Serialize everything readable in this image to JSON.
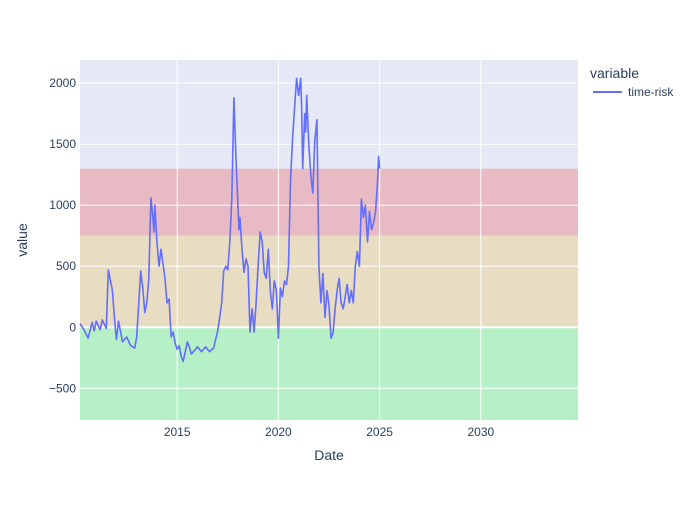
{
  "chart_data": {
    "type": "line",
    "xlabel": "Date",
    "ylabel": "value",
    "xlim": [
      2010.2,
      2034.8
    ],
    "ylim": [
      -760,
      2190
    ],
    "x_ticks": [
      2015,
      2020,
      2025,
      2030
    ],
    "x_tick_labels": [
      "2015",
      "2020",
      "2025",
      "2030"
    ],
    "y_ticks": [
      -500,
      0,
      500,
      1000,
      1500,
      2000
    ],
    "y_tick_labels": [
      "−500",
      "0",
      "500",
      "1000",
      "1500",
      "2000"
    ],
    "grid": true,
    "legend": {
      "title": "variable",
      "placement": "top-right"
    },
    "bands": [
      {
        "from": -760,
        "to": 0,
        "color": "#b6f0c6"
      },
      {
        "from": 0,
        "to": 750,
        "color": "#e8dcc3"
      },
      {
        "from": 750,
        "to": 1300,
        "color": "#e8bac3"
      },
      {
        "from": 1300,
        "to": 2190,
        "color": "#e4e9f5"
      }
    ],
    "series": [
      {
        "name": "time-risk",
        "color": "#636efa",
        "x": [
          2010.2,
          2010.4,
          2010.6,
          2010.8,
          2010.9,
          2011.0,
          2011.2,
          2011.3,
          2011.5,
          2011.6,
          2011.8,
          2011.9,
          2012.0,
          2012.1,
          2012.3,
          2012.5,
          2012.7,
          2012.9,
          2013.0,
          2013.2,
          2013.3,
          2013.4,
          2013.5,
          2013.6,
          2013.7,
          2013.8,
          2013.85,
          2013.9,
          2014.0,
          2014.1,
          2014.2,
          2014.3,
          2014.4,
          2014.5,
          2014.6,
          2014.7,
          2014.8,
          2014.9,
          2015.0,
          2015.1,
          2015.2,
          2015.3,
          2015.4,
          2015.5,
          2015.6,
          2015.7,
          2015.8,
          2016.0,
          2016.2,
          2016.4,
          2016.6,
          2016.8,
          2017.0,
          2017.1,
          2017.2,
          2017.3,
          2017.4,
          2017.5,
          2017.6,
          2017.7,
          2017.8,
          2017.9,
          2017.95,
          2018.0,
          2018.05,
          2018.1,
          2018.2,
          2018.3,
          2018.4,
          2018.5,
          2018.6,
          2018.7,
          2018.8,
          2018.9,
          2019.0,
          2019.1,
          2019.2,
          2019.3,
          2019.4,
          2019.5,
          2019.6,
          2019.7,
          2019.8,
          2019.9,
          2020.0,
          2020.1,
          2020.2,
          2020.3,
          2020.4,
          2020.5,
          2020.6,
          2020.7,
          2020.8,
          2020.9,
          2021.0,
          2021.1,
          2021.15,
          2021.2,
          2021.3,
          2021.35,
          2021.4,
          2021.5,
          2021.6,
          2021.7,
          2021.8,
          2021.9,
          2022.0,
          2022.1,
          2022.2,
          2022.3,
          2022.4,
          2022.5,
          2022.6,
          2022.7,
          2022.8,
          2022.9,
          2023.0,
          2023.1,
          2023.2,
          2023.3,
          2023.4,
          2023.5,
          2023.6,
          2023.7,
          2023.8,
          2023.9,
          2024.0,
          2024.1,
          2024.2,
          2024.3,
          2024.4,
          2024.5,
          2024.6,
          2024.7,
          2024.8,
          2024.9,
          2024.95,
          2025.0
        ],
        "y": [
          30,
          -20,
          -90,
          40,
          -30,
          50,
          -20,
          60,
          -10,
          470,
          300,
          80,
          -100,
          50,
          -120,
          -80,
          -150,
          -170,
          -80,
          460,
          320,
          120,
          200,
          400,
          1060,
          900,
          780,
          1000,
          700,
          500,
          640,
          520,
          400,
          200,
          230,
          -80,
          -40,
          -130,
          -180,
          -150,
          -240,
          -280,
          -200,
          -120,
          -160,
          -220,
          -200,
          -160,
          -200,
          -160,
          -200,
          -170,
          -30,
          80,
          200,
          460,
          500,
          470,
          700,
          1050,
          1880,
          1400,
          1200,
          1000,
          800,
          900,
          640,
          450,
          560,
          500,
          -40,
          150,
          -40,
          200,
          500,
          780,
          700,
          450,
          400,
          640,
          300,
          150,
          380,
          300,
          -90,
          320,
          250,
          380,
          350,
          500,
          1200,
          1550,
          1800,
          2040,
          1900,
          2040,
          1780,
          1300,
          1750,
          1600,
          1900,
          1500,
          1250,
          1100,
          1530,
          1700,
          500,
          200,
          440,
          80,
          300,
          180,
          -90,
          -50,
          150,
          300,
          400,
          200,
          150,
          250,
          350,
          200,
          300,
          200,
          500,
          620,
          500,
          1050,
          900,
          1000,
          700,
          950,
          800,
          850,
          950,
          1200,
          1400,
          1300
        ]
      }
    ]
  }
}
